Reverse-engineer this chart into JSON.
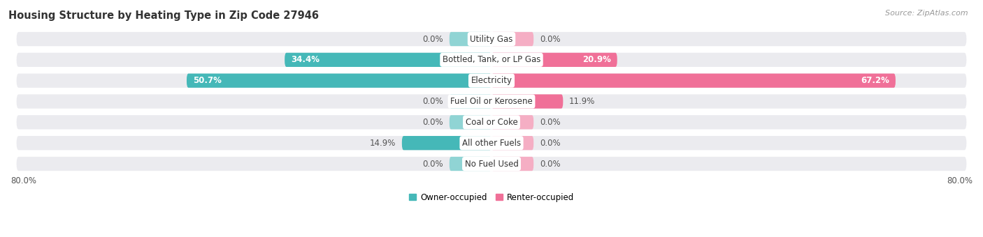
{
  "title": "Housing Structure by Heating Type in Zip Code 27946",
  "source": "Source: ZipAtlas.com",
  "categories": [
    "Utility Gas",
    "Bottled, Tank, or LP Gas",
    "Electricity",
    "Fuel Oil or Kerosene",
    "Coal or Coke",
    "All other Fuels",
    "No Fuel Used"
  ],
  "owner_values": [
    0.0,
    34.4,
    50.7,
    0.0,
    0.0,
    14.9,
    0.0
  ],
  "renter_values": [
    0.0,
    20.9,
    67.2,
    11.9,
    0.0,
    0.0,
    0.0
  ],
  "owner_color": "#45b8b8",
  "renter_color": "#f07098",
  "owner_color_zero": "#90d4d4",
  "renter_color_zero": "#f5aec4",
  "bar_bg_color": "#ebebef",
  "bar_bg_gap": "#d8d8de",
  "x_min": -80.0,
  "x_max": 80.0,
  "zero_stub": 7.0,
  "axis_label_left": "80.0%",
  "axis_label_right": "80.0%",
  "legend_owner": "Owner-occupied",
  "legend_renter": "Renter-occupied",
  "title_fontsize": 10.5,
  "source_fontsize": 8,
  "label_fontsize": 8.5,
  "category_fontsize": 8.5
}
